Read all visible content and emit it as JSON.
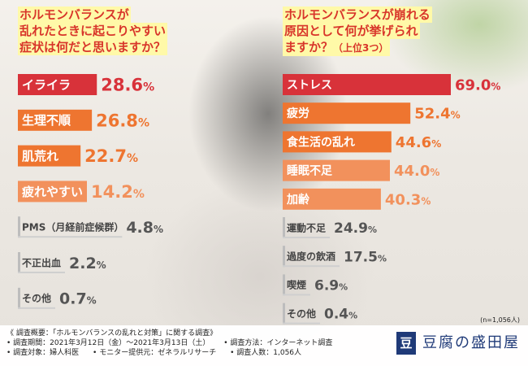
{
  "header": {
    "left_lines": [
      "ホルモンバランスが",
      "乱れたときに起こりやすい",
      "症状は何だと思いますか？"
    ],
    "right_lines": [
      "ホルモンバランスが崩れる",
      "原因として何が挙げられ"
    ],
    "right_last": "ますか？",
    "right_last_note": "（上位3つ）"
  },
  "sample_size": "(n=1,056人)",
  "colors": {
    "dark_red": "#d8323a",
    "orange": "#ee7530",
    "light_orange": "#f2915c",
    "gray": "#8a8a8a",
    "title_red": "#d8352a",
    "highlight": "#fff9a8",
    "logo_blue": "#1f3a78"
  },
  "chart_data": [
    {
      "type": "bar",
      "orientation": "horizontal",
      "title": "ホルモンバランスが乱れたときに起こりやすい症状は何だと思いますか？",
      "categories": [
        "イライラ",
        "生理不順",
        "肌荒れ",
        "疲れやすい",
        "PMS（月経前症候群）",
        "不正出血",
        "その他"
      ],
      "values": [
        28.6,
        26.8,
        22.7,
        14.2,
        4.8,
        2.2,
        0.7
      ],
      "value_labels": [
        "28.6%",
        "26.8%",
        "22.7%",
        "14.2%",
        "4.8%",
        "2.2%",
        "0.7%"
      ],
      "unit": "%",
      "bar_colors": [
        "dark_red",
        "orange",
        "orange",
        "light_orange",
        "gray",
        "gray",
        "gray"
      ],
      "ylim": [
        0,
        100
      ]
    },
    {
      "type": "bar",
      "orientation": "horizontal",
      "title": "ホルモンバランスが崩れる原因として何が挙げられますか？（上位3つ）",
      "categories": [
        "ストレス",
        "疲労",
        "食生活の乱れ",
        "睡眠不足",
        "加齢",
        "運動不足",
        "過度の飲酒",
        "喫煙",
        "その他"
      ],
      "values": [
        69.0,
        52.4,
        44.6,
        44.0,
        40.3,
        24.9,
        17.5,
        6.9,
        0.4
      ],
      "value_labels": [
        "69.0%",
        "52.4%",
        "44.6%",
        "44.0%",
        "40.3%",
        "24.9%",
        "17.5%",
        "6.9%",
        "0.4%"
      ],
      "unit": "%",
      "bar_colors": [
        "dark_red",
        "orange",
        "orange",
        "light_orange",
        "light_orange",
        "gray",
        "gray",
        "gray",
        "gray"
      ],
      "ylim": [
        0,
        100
      ]
    }
  ],
  "footer": {
    "line1": "《 調査概要：「ホルモンバランスの乱れと対策」に関する調査》",
    "line2a": "• 調査期間：2021年3月12日（金）～2021年3月13日（土）",
    "line2b": "• 調査方法：インターネット調査",
    "line3a": "• 調査対象：婦人科医",
    "line3b": "• モニター提供元：ゼネラルリサーチ",
    "line3c": "• 調査人数：1,056人",
    "logo_mark": "豆",
    "logo_text": "豆腐の盛田屋"
  }
}
